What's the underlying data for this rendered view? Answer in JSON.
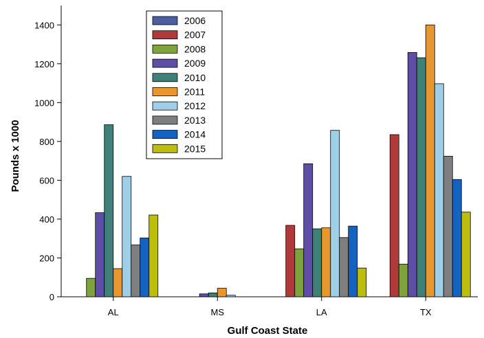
{
  "chart_data": {
    "type": "bar",
    "title": "",
    "xlabel": "Gulf Coast State",
    "ylabel": "Pounds x 1000",
    "categories": [
      "AL",
      "MS",
      "LA",
      "TX"
    ],
    "ylim": [
      0,
      1500
    ],
    "yticks": [
      0,
      200,
      400,
      600,
      800,
      1000,
      1200,
      1400
    ],
    "grid": false,
    "legend_position": "top-left",
    "series": [
      {
        "name": "2006",
        "color": "#4b5fa0",
        "values": [
          0,
          0,
          0,
          0
        ]
      },
      {
        "name": "2007",
        "color": "#b03a3a",
        "values": [
          0,
          0,
          368,
          835
        ]
      },
      {
        "name": "2008",
        "color": "#7ea33c",
        "values": [
          95,
          0,
          247,
          168
        ]
      },
      {
        "name": "2009",
        "color": "#5f4ea6",
        "values": [
          433,
          15,
          685,
          1258
        ]
      },
      {
        "name": "2010",
        "color": "#3f8079",
        "values": [
          886,
          20,
          350,
          1231
        ]
      },
      {
        "name": "2011",
        "color": "#e8962e",
        "values": [
          145,
          44,
          355,
          1400
        ]
      },
      {
        "name": "2012",
        "color": "#9fcfe6",
        "values": [
          620,
          8,
          857,
          1097
        ]
      },
      {
        "name": "2013",
        "color": "#7f7f7f",
        "values": [
          267,
          0,
          305,
          724
        ]
      },
      {
        "name": "2014",
        "color": "#1462c2",
        "values": [
          303,
          0,
          364,
          604
        ]
      },
      {
        "name": "2015",
        "color": "#bdbd0e",
        "values": [
          421,
          0,
          148,
          436
        ]
      }
    ]
  }
}
